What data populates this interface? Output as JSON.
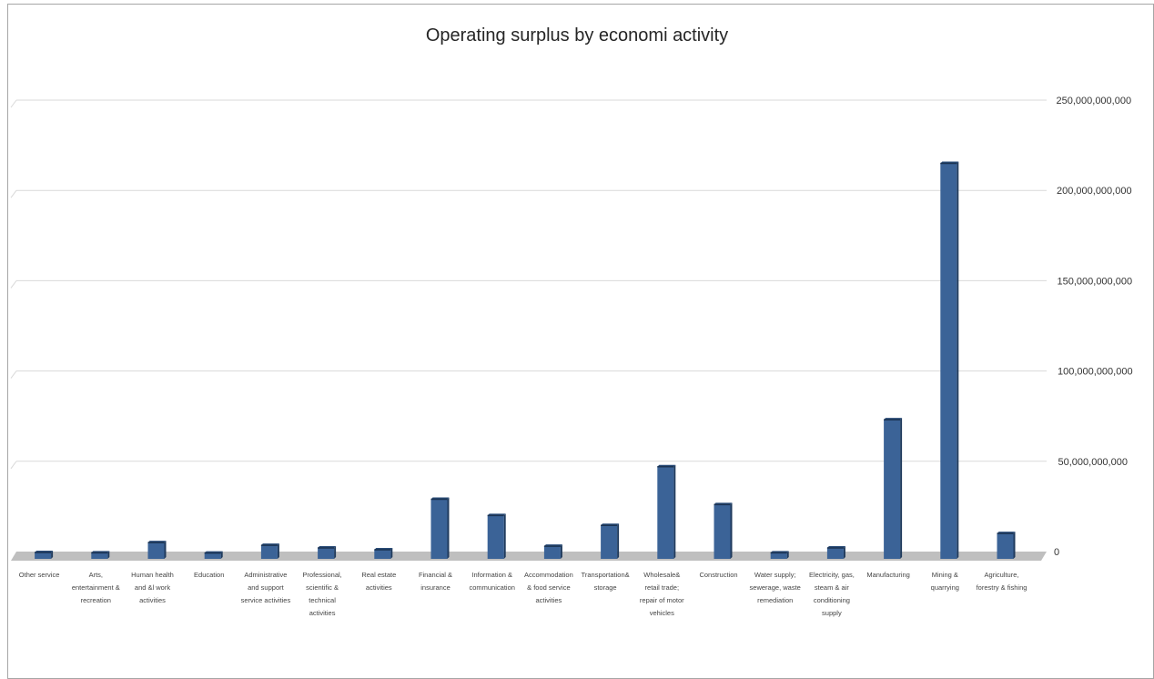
{
  "chart_data": {
    "type": "bar",
    "title": "Operating surplus by economi activity",
    "xlabel": "",
    "ylabel": "",
    "ylim": [
      0,
      250000000000
    ],
    "grid": true,
    "legend": "none",
    "bar_color": "#3b6397",
    "yticks": [
      "0",
      "50,000,000,000",
      "100,000,000,000",
      "150,000,000,000",
      "200,000,000,000",
      "250,000,000,000"
    ],
    "categories": [
      [
        "Other service"
      ],
      [
        "Arts,",
        "entertainment &",
        "recreation"
      ],
      [
        "Human health",
        "and &l work",
        "activities"
      ],
      [
        "Education"
      ],
      [
        "Administrative",
        "and support",
        "service activities"
      ],
      [
        "Professional,",
        "scientific &",
        "technical",
        "activities"
      ],
      [
        "Real estate",
        "activities"
      ],
      [
        "Financial &",
        "insurance"
      ],
      [
        "Information &",
        "communication"
      ],
      [
        "Accommodation",
        "& food service",
        "activities"
      ],
      [
        "Transportation&",
        "storage"
      ],
      [
        "Wholesale&",
        "retail trade;",
        "repair of motor",
        "vehicles"
      ],
      [
        "Construction"
      ],
      [
        "Water supply;",
        "sewerage, waste",
        "remediation"
      ],
      [
        "Electricity, gas,",
        "steam & air",
        "conditioning",
        "supply"
      ],
      [
        "Manufacturing"
      ],
      [
        "Mining &",
        "quarrying"
      ],
      [
        "Agriculture,",
        "forestry & fishing"
      ]
    ],
    "values": [
      500000000,
      300000000,
      6000000000,
      200000000,
      4500000000,
      3000000000,
      2000000000,
      30000000000,
      21000000000,
      4000000000,
      15500000000,
      48000000000,
      27000000000,
      300000000,
      3000000000,
      74000000000,
      216000000000,
      11000000000
    ]
  }
}
